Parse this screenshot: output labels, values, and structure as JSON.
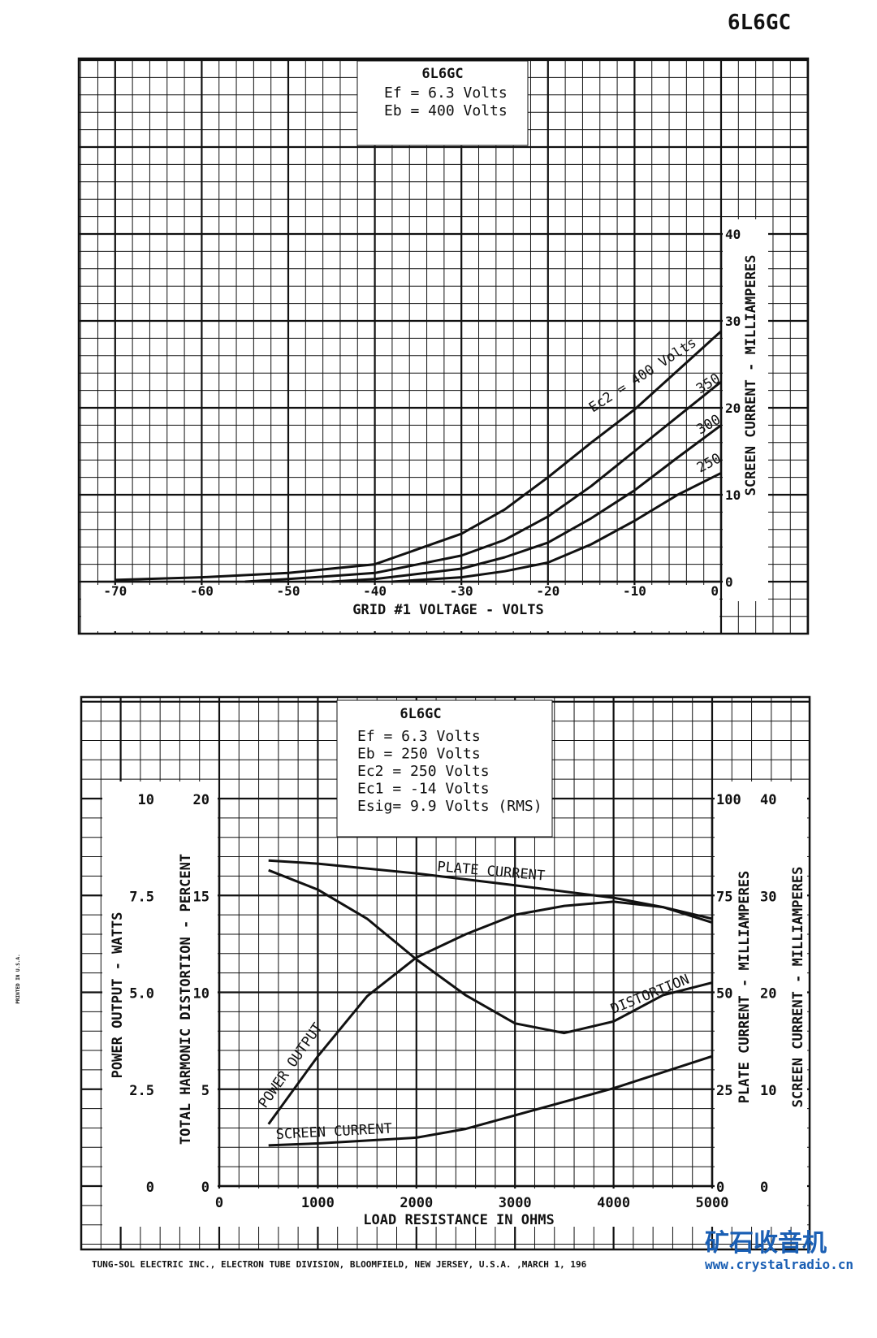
{
  "page_title": "6L6GC",
  "footer": "TUNG-SOL ELECTRIC INC.,  ELECTRON TUBE DIVISION,  BLOOMFIELD, NEW JERSEY, U.S.A. ,MARCH 1, 196",
  "side_note": "PRINTED IN U.S.A.",
  "watermark": {
    "title": "矿石收音机",
    "url": "www.crystalradio.cn",
    "color": "#1a5fb4"
  },
  "chart_data": [
    {
      "type": "line",
      "title": "6L6GC",
      "conditions": [
        "Ef = 6.3 Volts",
        "Eb = 400 Volts"
      ],
      "xlabel": "GRID #1 VOLTAGE - VOLTS",
      "ylabel": "SCREEN CURRENT - MILLIAMPERES",
      "xlim": [
        -70,
        0
      ],
      "ylim": [
        0,
        40
      ],
      "xticks": [
        "-70",
        "-60",
        "-50",
        "-40",
        "-30",
        "-20",
        "-10",
        "0"
      ],
      "yticks": [
        "0",
        "10",
        "20",
        "30",
        "40"
      ],
      "grid": true,
      "series": [
        {
          "name": "Ec2 = 400 Volts",
          "x": [
            -70,
            -60,
            -50,
            -40,
            -30,
            -25,
            -20,
            -15,
            -10,
            -5,
            0
          ],
          "y": [
            0.2,
            0.5,
            1.0,
            2.0,
            5.5,
            8.3,
            12.0,
            16.0,
            19.8,
            24.3,
            28.8
          ]
        },
        {
          "name": "350",
          "x": [
            -55,
            -50,
            -40,
            -30,
            -25,
            -20,
            -15,
            -10,
            -5,
            0
          ],
          "y": [
            0,
            0.3,
            1.0,
            3.0,
            4.8,
            7.5,
            11.0,
            15.0,
            19.0,
            23.0
          ]
        },
        {
          "name": "300",
          "x": [
            -45,
            -40,
            -30,
            -25,
            -20,
            -15,
            -10,
            -5,
            0
          ],
          "y": [
            0,
            0.3,
            1.5,
            2.8,
            4.5,
            7.3,
            10.5,
            14.3,
            18.0
          ]
        },
        {
          "name": "250",
          "x": [
            -38,
            -30,
            -25,
            -20,
            -15,
            -10,
            -5,
            0
          ],
          "y": [
            0,
            0.5,
            1.2,
            2.2,
            4.3,
            7.0,
            10.0,
            12.5
          ]
        }
      ]
    },
    {
      "type": "line",
      "title": "6L6GC",
      "conditions": [
        "Ef  = 6.3 Volts",
        "Eb  = 250 Volts",
        "Ec2 = 250 Volts",
        "Ec1 = -14 Volts",
        "Esig= 9.9 Volts (RMS)"
      ],
      "xlabel": "LOAD RESISTANCE IN OHMS",
      "xlim": [
        0,
        5000
      ],
      "xticks": [
        "0",
        "1000",
        "2000",
        "3000",
        "4000",
        "5000"
      ],
      "axes": [
        {
          "label": "POWER OUTPUT - WATTS",
          "ticks": [
            "0",
            "2.5",
            "5.0",
            "7.5",
            "10"
          ],
          "range": [
            0,
            10
          ]
        },
        {
          "label": "TOTAL HARMONIC DISTORTION - PERCENT",
          "ticks": [
            "0",
            "5",
            "10",
            "15",
            "20"
          ],
          "range": [
            0,
            20
          ]
        },
        {
          "label": "PLATE CURRENT - MILLIAMPERES",
          "ticks": [
            "0",
            "25",
            "50",
            "75",
            "100"
          ],
          "range": [
            0,
            100
          ]
        },
        {
          "label": "SCREEN CURRENT - MILLIAMPERES",
          "ticks": [
            "0",
            "10",
            "20",
            "30",
            "40"
          ],
          "range": [
            0,
            40
          ]
        }
      ],
      "grid": true,
      "series": [
        {
          "name": "PLATE CURRENT",
          "axis": 2,
          "x": [
            500,
            1000,
            2000,
            3000,
            4000,
            4500,
            5000
          ],
          "y": [
            84,
            83.2,
            80.7,
            77.6,
            74.4,
            72,
            69
          ]
        },
        {
          "name": "DISTORTION",
          "axis": 1,
          "x": [
            500,
            1000,
            1500,
            2000,
            2500,
            3000,
            3500,
            4000,
            4500,
            5000
          ],
          "y": [
            16.3,
            15.3,
            13.8,
            11.7,
            9.85,
            8.4,
            7.9,
            8.5,
            9.85,
            10.5
          ]
        },
        {
          "name": "POWER OUTPUT",
          "axis": 0,
          "x": [
            500,
            1000,
            1500,
            2000,
            2500,
            3000,
            3500,
            4000,
            4500,
            5000
          ],
          "y": [
            1.6,
            3.35,
            4.9,
            5.9,
            6.5,
            7.0,
            7.23,
            7.34,
            7.2,
            6.8
          ]
        },
        {
          "name": "SCREEN CURRENT",
          "axis": 3,
          "x": [
            500,
            1000,
            2000,
            2500,
            3000,
            4000,
            5000
          ],
          "y": [
            4.2,
            4.4,
            5.0,
            5.9,
            7.3,
            10.1,
            13.4
          ]
        }
      ]
    }
  ]
}
